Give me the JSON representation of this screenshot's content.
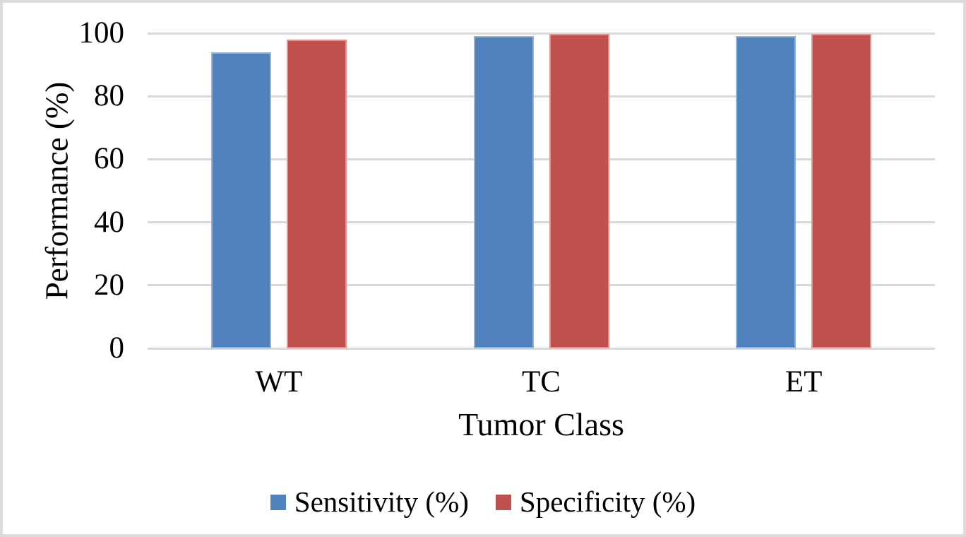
{
  "chart_data": {
    "type": "bar",
    "categories": [
      "WT",
      "TC",
      "ET"
    ],
    "series": [
      {
        "name": "Sensitivity (%)",
        "color": "#4F81BD",
        "border_color": "#95B3D7",
        "values": [
          94,
          99,
          99
        ]
      },
      {
        "name": "Specificity (%)",
        "color": "#C0504D",
        "border_color": "#D99694",
        "values": [
          98,
          99.8,
          99.8
        ]
      }
    ],
    "title": "",
    "xlabel": "Tumor Class",
    "ylabel": "Performance (%)",
    "ylim": [
      0,
      100
    ],
    "yticks": [
      0,
      20,
      40,
      60,
      80,
      100
    ],
    "grid": "horizontal",
    "gridline_color": "#D9D9D9",
    "legend_position": "bottom",
    "text_color": "#000000",
    "background_color": "#FFFFFF",
    "frame_border_color": "#DCDCDC"
  }
}
